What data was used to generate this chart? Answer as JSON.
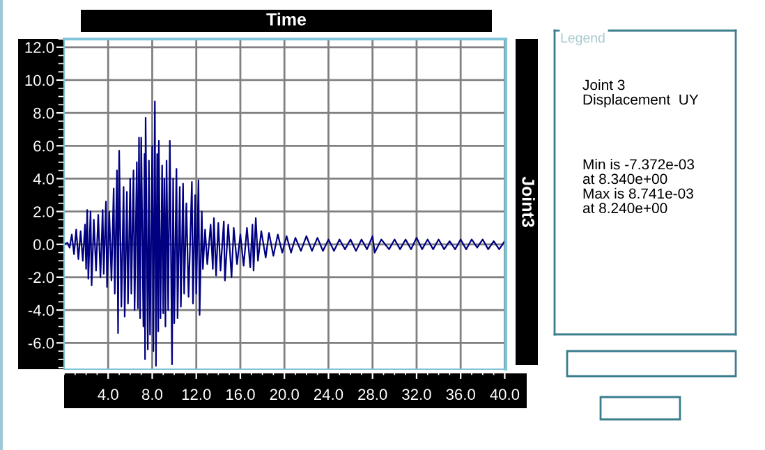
{
  "chart_data": {
    "type": "line",
    "xlabel": "Time",
    "y2label": "Joint3",
    "annotations": [
      "Legend",
      "Joint 3\nDisplacement  UY",
      "Min is -7.372e-03\nat 8.340e+00\nMax is 8.741e-03\nat 8.240e+00"
    ],
    "series": [
      {
        "color": "#000080",
        "x": [
          0,
          0.3,
          0.5,
          0.7,
          0.9,
          1.1,
          1.3,
          1.5,
          1.7,
          1.9,
          2.0,
          2.1,
          2.2,
          2.4,
          2.5,
          2.7,
          2.9,
          3.1,
          3.3,
          3.5,
          3.6,
          3.8,
          3.9,
          4.1,
          4.3,
          4.5,
          4.6,
          4.8,
          4.9,
          5.0,
          5.2,
          5.4,
          5.5,
          5.7,
          5.8,
          6.0,
          6.1,
          6.3,
          6.4,
          6.6,
          6.7,
          6.8,
          6.9,
          7.0,
          7.2,
          7.3,
          7.35,
          7.4,
          7.6,
          7.7,
          7.8,
          8.0,
          8.1,
          8.24,
          8.34,
          8.45,
          8.55,
          8.6,
          8.75,
          8.9,
          9.0,
          9.1,
          9.2,
          9.3,
          9.45,
          9.6,
          9.8,
          9.9,
          10.0,
          10.2,
          10.3,
          10.5,
          10.6,
          10.8,
          10.9,
          11.1,
          11.3,
          11.6,
          11.7,
          11.9,
          12.0,
          12.2,
          12.3,
          12.5,
          12.6,
          12.8,
          13.0,
          13.3,
          13.5,
          13.6,
          13.8,
          14.0,
          14.2,
          14.5,
          14.6,
          14.9,
          15.2,
          15.4,
          15.7,
          16.0,
          16.3,
          16.6,
          16.9,
          17.1,
          17.2,
          17.4,
          17.6,
          17.9,
          18.3,
          18.6,
          19.0,
          19.4,
          19.8,
          20.2,
          20.6,
          21.0,
          21.5,
          22.0,
          22.5,
          23.0,
          23.5,
          24.0,
          24.5,
          25.0,
          25.5,
          26.0,
          26.5,
          27.0,
          27.5,
          28.0,
          28.2,
          28.8,
          29.5,
          30.0,
          30.5,
          31.0,
          31.5,
          32.0,
          32.5,
          33.0,
          33.5,
          34.0,
          34.5,
          35.0,
          35.5,
          36.0,
          36.5,
          37.0,
          37.5,
          38.0,
          38.5,
          39.0,
          39.5,
          40.0
        ],
        "values": [
          0,
          0.1,
          -0.2,
          0.6,
          -0.6,
          0.9,
          -0.9,
          0.8,
          -1.0,
          1.2,
          -1.5,
          2.1,
          -2.1,
          2.0,
          -2.5,
          1.5,
          -1.6,
          1.8,
          -2.0,
          2.1,
          -1.8,
          2.6,
          -2.6,
          2.0,
          -2.2,
          3.4,
          -3.0,
          4.5,
          -5.4,
          5.7,
          -3.8,
          3.5,
          -4.4,
          3.2,
          -3.6,
          4.0,
          -3.0,
          4.5,
          -4.0,
          5.0,
          -3.9,
          6.5,
          -4.5,
          6.5,
          -5.0,
          5.5,
          -7.0,
          7.7,
          -6.4,
          5.1,
          -5.5,
          6.0,
          -6.5,
          8.7,
          -7.4,
          5.5,
          -5.3,
          6.3,
          -4.5,
          4.8,
          -4.2,
          4.0,
          -5.0,
          5.1,
          -4.0,
          6.3,
          -7.3,
          4.0,
          -4.8,
          4.6,
          -4.5,
          3.5,
          -3.8,
          3.7,
          -3.0,
          2.5,
          -3.2,
          3.8,
          -3.6,
          3.0,
          -3.0,
          3.9,
          -4.3,
          2.0,
          -1.5,
          0.9,
          -1.2,
          1.2,
          -1.5,
          1.6,
          -1.9,
          1.3,
          -1.6,
          1.4,
          -2.2,
          1.2,
          -2.0,
          1.0,
          -1.2,
          0.6,
          -1.3,
          1.0,
          -1.4,
          1.2,
          -1.6,
          1.6,
          -1.0,
          0.8,
          -0.8,
          0.7,
          -0.7,
          0.6,
          -0.5,
          0.5,
          -0.5,
          0.4,
          -0.4,
          0.5,
          -0.4,
          0.4,
          -0.4,
          0.3,
          -0.4,
          0.3,
          -0.3,
          0.3,
          -0.4,
          0.3,
          -0.3,
          0.5,
          -0.5,
          0.3,
          -0.3,
          0.3,
          -0.3,
          0.3,
          -0.3,
          0.4,
          -0.3,
          0.3,
          -0.3,
          0.3,
          -0.3,
          0.2,
          -0.3,
          0.3,
          -0.3,
          0.3,
          -0.2,
          0.3,
          -0.3,
          0.2,
          -0.3,
          0.2
        ]
      }
    ],
    "xlim": [
      0,
      40.1
    ],
    "ylim": [
      -7.6,
      12.5
    ],
    "xticks": [
      {
        "value": 4,
        "label": "4.0"
      },
      {
        "value": 8,
        "label": "8.0"
      },
      {
        "value": 12,
        "label": "12.0"
      },
      {
        "value": 16,
        "label": "16.0"
      },
      {
        "value": 20,
        "label": "20.0"
      },
      {
        "value": 24,
        "label": "24.0"
      },
      {
        "value": 28,
        "label": "28.0"
      },
      {
        "value": 32,
        "label": "32.0"
      },
      {
        "value": 36,
        "label": "36.0"
      },
      {
        "value": 40,
        "label": "40.0"
      }
    ],
    "yticks": [
      {
        "value": -6,
        "label": "-6.0"
      },
      {
        "value": -4,
        "label": "-4.0"
      },
      {
        "value": -2,
        "label": "-2.0"
      },
      {
        "value": 0,
        "label": "0.0"
      },
      {
        "value": 2,
        "label": "2.0"
      },
      {
        "value": 4,
        "label": "4.0"
      },
      {
        "value": 6,
        "label": "6.0"
      },
      {
        "value": 8,
        "label": "8.0"
      },
      {
        "value": 10,
        "label": "10.0"
      },
      {
        "value": 12,
        "label": "12.0"
      }
    ],
    "grid": true,
    "line_style": "solid",
    "marker": "none"
  }
}
